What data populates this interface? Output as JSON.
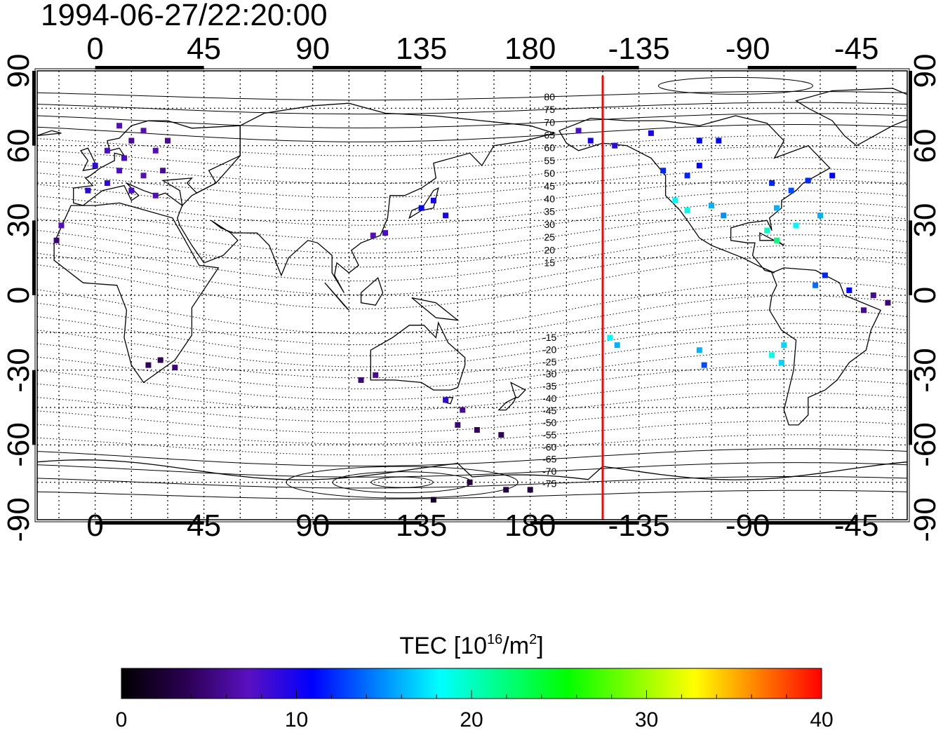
{
  "timestamp": "1994-06-27/22:20:00",
  "map": {
    "lon_ticks_labels": [
      "0",
      "45",
      "90",
      "135",
      "180",
      "-135",
      "-90",
      "-45"
    ],
    "lat_ticks_labels": [
      "90",
      "60",
      "30",
      "0",
      "-30",
      "-60",
      "-90"
    ],
    "lon_tick_values": [
      0,
      45,
      90,
      135,
      180,
      225,
      270,
      315
    ],
    "lat_tick_values": [
      90,
      60,
      30,
      0,
      -30,
      -60,
      -90
    ],
    "lon_range": [
      -24,
      336
    ],
    "lat_range": [
      -90,
      90
    ],
    "terminator_lon": 210,
    "terminator_color": "#ff0000",
    "contour_labels": [
      "80",
      "75",
      "70",
      "65",
      "60",
      "55",
      "50",
      "45",
      "40",
      "35",
      "30",
      "25",
      "20",
      "15",
      "-15",
      "-20",
      "-25",
      "-30",
      "-35",
      "-40",
      "-45",
      "-50",
      "-55",
      "-60",
      "-65",
      "-70",
      "-75"
    ]
  },
  "colorbar": {
    "title_prefix": "TEC  [10",
    "title_sup1": "16",
    "title_mid": "/m",
    "title_sup2": "2",
    "title_suffix": "]",
    "labels": [
      "0",
      "10",
      "20",
      "30",
      "40"
    ],
    "min": 0,
    "max": 40,
    "stops": [
      "#000000",
      "#2a0050",
      "#5a10c0",
      "#0000ff",
      "#0080ff",
      "#00ffff",
      "#00ff80",
      "#00ff00",
      "#80ff00",
      "#ffff00",
      "#ff8000",
      "#ff0000"
    ]
  },
  "chart_data": {
    "type": "scatter",
    "title": "1994-06-27/22:20:00",
    "xlabel": "",
    "ylabel": "",
    "xlim": [
      -24,
      336
    ],
    "ylim": [
      -90,
      90
    ],
    "value_label": "TEC [10^16/m^2]",
    "points": [
      {
        "lon": 10,
        "lat": 68,
        "tec": 7
      },
      {
        "lon": 15,
        "lat": 62,
        "tec": 6
      },
      {
        "lon": 20,
        "lat": 66,
        "tec": 7
      },
      {
        "lon": 5,
        "lat": 58,
        "tec": 8
      },
      {
        "lon": 25,
        "lat": 58,
        "tec": 7
      },
      {
        "lon": 30,
        "lat": 62,
        "tec": 6
      },
      {
        "lon": 0,
        "lat": 52,
        "tec": 9
      },
      {
        "lon": 10,
        "lat": 50,
        "tec": 8
      },
      {
        "lon": 20,
        "lat": 48,
        "tec": 7
      },
      {
        "lon": 5,
        "lat": 45,
        "tec": 9
      },
      {
        "lon": 15,
        "lat": 42,
        "tec": 8
      },
      {
        "lon": -3,
        "lat": 42,
        "tec": 9
      },
      {
        "lon": 25,
        "lat": 40,
        "tec": 7
      },
      {
        "lon": 12,
        "lat": 55,
        "tec": 8
      },
      {
        "lon": 28,
        "lat": 50,
        "tec": 6
      },
      {
        "lon": -14,
        "lat": 28,
        "tec": 7
      },
      {
        "lon": -16,
        "lat": 22,
        "tec": 5
      },
      {
        "lon": 27,
        "lat": -26,
        "tec": 4
      },
      {
        "lon": 22,
        "lat": -28,
        "tec": 4
      },
      {
        "lon": 33,
        "lat": -29,
        "tec": 5
      },
      {
        "lon": 116,
        "lat": -32,
        "tec": 6
      },
      {
        "lon": 110,
        "lat": -34,
        "tec": 5
      },
      {
        "lon": 145,
        "lat": -42,
        "tec": 9
      },
      {
        "lon": 152,
        "lat": -46,
        "tec": 6
      },
      {
        "lon": 150,
        "lat": -52,
        "tec": 5
      },
      {
        "lon": 158,
        "lat": -54,
        "tec": 4
      },
      {
        "lon": 168,
        "lat": -56,
        "tec": 4
      },
      {
        "lon": 140,
        "lat": 38,
        "tec": 10
      },
      {
        "lon": 135,
        "lat": 35,
        "tec": 11
      },
      {
        "lon": 145,
        "lat": 32,
        "tec": 10
      },
      {
        "lon": 120,
        "lat": 25,
        "tec": 8
      },
      {
        "lon": 115,
        "lat": 24,
        "tec": 7
      },
      {
        "lon": 155,
        "lat": -75,
        "tec": 3
      },
      {
        "lon": 170,
        "lat": -78,
        "tec": 3
      },
      {
        "lon": 180,
        "lat": -78,
        "tec": 3
      },
      {
        "lon": 140,
        "lat": -82,
        "tec": 2
      },
      {
        "lon": 200,
        "lat": 66,
        "tec": 8
      },
      {
        "lon": 205,
        "lat": 62,
        "tec": 10
      },
      {
        "lon": 215,
        "lat": 60,
        "tec": 9
      },
      {
        "lon": 230,
        "lat": 65,
        "tec": 10
      },
      {
        "lon": 235,
        "lat": 50,
        "tec": 12
      },
      {
        "lon": 245,
        "lat": 48,
        "tec": 12
      },
      {
        "lon": 250,
        "lat": 52,
        "tec": 11
      },
      {
        "lon": 240,
        "lat": 38,
        "tec": 18
      },
      {
        "lon": 245,
        "lat": 34,
        "tec": 19
      },
      {
        "lon": 255,
        "lat": 36,
        "tec": 16
      },
      {
        "lon": 260,
        "lat": 32,
        "tec": 15
      },
      {
        "lon": 250,
        "lat": 62,
        "tec": 11
      },
      {
        "lon": 258,
        "lat": 62,
        "tec": 11
      },
      {
        "lon": 280,
        "lat": 45,
        "tec": 12
      },
      {
        "lon": 288,
        "lat": 42,
        "tec": 13
      },
      {
        "lon": 282,
        "lat": 35,
        "tec": 16
      },
      {
        "lon": 295,
        "lat": 46,
        "tec": 12
      },
      {
        "lon": 305,
        "lat": 48,
        "tec": 11
      },
      {
        "lon": 278,
        "lat": 26,
        "tec": 20
      },
      {
        "lon": 282,
        "lat": 22,
        "tec": 22
      },
      {
        "lon": 290,
        "lat": 28,
        "tec": 18
      },
      {
        "lon": 300,
        "lat": 32,
        "tec": 16
      },
      {
        "lon": 302,
        "lat": 8,
        "tec": 12
      },
      {
        "lon": 298,
        "lat": 4,
        "tec": 14
      },
      {
        "lon": 312,
        "lat": 2,
        "tec": 11
      },
      {
        "lon": 322,
        "lat": 0,
        "tec": 6
      },
      {
        "lon": 328,
        "lat": -3,
        "tec": 5
      },
      {
        "lon": 318,
        "lat": -6,
        "tec": 6
      },
      {
        "lon": 285,
        "lat": -20,
        "tec": 17
      },
      {
        "lon": 280,
        "lat": -24,
        "tec": 19
      },
      {
        "lon": 284,
        "lat": -27,
        "tec": 17
      },
      {
        "lon": 213,
        "lat": -17,
        "tec": 18
      },
      {
        "lon": 216,
        "lat": -20,
        "tec": 16
      },
      {
        "lon": 250,
        "lat": -22,
        "tec": 16
      },
      {
        "lon": 252,
        "lat": -28,
        "tec": 13
      }
    ]
  }
}
